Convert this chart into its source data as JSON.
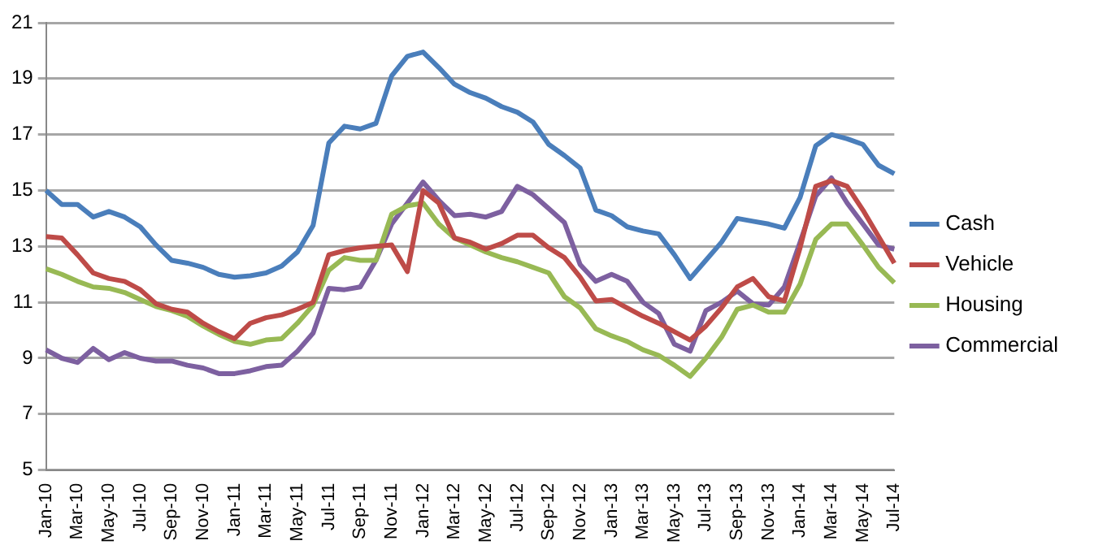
{
  "chart_data": {
    "type": "line",
    "categories": [
      "Jan-10",
      null,
      "Mar-10",
      null,
      "May-10",
      null,
      "Jul-10",
      null,
      "Sep-10",
      null,
      "Nov-10",
      null,
      "Jan-11",
      null,
      "Mar-11",
      null,
      "May-11",
      null,
      "Jul-11",
      null,
      "Sep-11",
      null,
      "Nov-11",
      null,
      "Jan-12",
      null,
      "Mar-12",
      null,
      "May-12",
      null,
      "Jul-12",
      null,
      "Sep-12",
      null,
      "Nov-12",
      null,
      "Jan-13",
      null,
      "Mar-13",
      null,
      "May-13",
      null,
      "Jul-13",
      null,
      "Sep-13",
      null,
      "Nov-13",
      null,
      "Jan-14",
      null,
      "Mar-14",
      null,
      "May-14",
      null,
      "Jul-14"
    ],
    "series": [
      {
        "name": "Cash",
        "color": "#4a7ebb",
        "values": [
          15.0,
          14.5,
          14.5,
          14.05,
          14.25,
          14.05,
          13.7,
          13.05,
          12.5,
          12.4,
          12.25,
          12.0,
          11.9,
          11.95,
          12.05,
          12.3,
          12.8,
          13.75,
          16.7,
          17.3,
          17.2,
          17.4,
          19.1,
          19.8,
          19.95,
          19.4,
          18.8,
          18.5,
          18.3,
          18.0,
          17.8,
          17.45,
          16.65,
          16.25,
          15.8,
          14.3,
          14.1,
          13.7,
          13.55,
          13.45,
          12.7,
          11.85,
          12.5,
          13.15,
          14.0,
          13.9,
          13.8,
          13.65,
          14.75,
          16.6,
          17.0,
          16.85,
          16.65,
          15.9,
          15.6
        ]
      },
      {
        "name": "Vehicle",
        "color": "#be4b48",
        "values": [
          13.35,
          13.3,
          12.7,
          12.05,
          11.85,
          11.75,
          11.45,
          10.95,
          10.75,
          10.65,
          10.25,
          9.95,
          9.7,
          10.25,
          10.45,
          10.55,
          10.75,
          11.0,
          12.7,
          12.85,
          12.95,
          13.0,
          13.05,
          12.1,
          15.0,
          14.55,
          13.3,
          13.15,
          12.9,
          13.1,
          13.4,
          13.4,
          12.95,
          12.6,
          11.9,
          11.05,
          11.1,
          10.8,
          10.5,
          10.25,
          9.95,
          9.65,
          10.15,
          10.8,
          11.55,
          11.85,
          11.2,
          11.05,
          12.95,
          15.15,
          15.35,
          15.15,
          14.3,
          13.35,
          12.4
        ]
      },
      {
        "name": "Housing",
        "color": "#98b954",
        "values": [
          12.2,
          12.0,
          11.75,
          11.55,
          11.5,
          11.35,
          11.1,
          10.85,
          10.7,
          10.5,
          10.15,
          9.85,
          9.6,
          9.5,
          9.65,
          9.7,
          10.25,
          10.9,
          12.15,
          12.6,
          12.5,
          12.5,
          14.15,
          14.45,
          14.55,
          13.8,
          13.3,
          13.05,
          12.8,
          12.6,
          12.45,
          12.25,
          12.05,
          11.2,
          10.8,
          10.05,
          9.8,
          9.6,
          9.3,
          9.1,
          8.75,
          8.35,
          9.0,
          9.75,
          10.75,
          10.9,
          10.65,
          10.65,
          11.65,
          13.25,
          13.8,
          13.8,
          13.05,
          12.25,
          11.7
        ]
      },
      {
        "name": "Commercial",
        "color": "#7d60a0",
        "values": [
          9.3,
          9.0,
          8.85,
          9.35,
          8.95,
          9.2,
          9.0,
          8.9,
          8.9,
          8.75,
          8.65,
          8.45,
          8.45,
          8.55,
          8.7,
          8.75,
          9.25,
          9.9,
          11.5,
          11.45,
          11.55,
          12.5,
          13.8,
          14.55,
          15.3,
          14.65,
          14.1,
          14.15,
          14.05,
          14.25,
          15.15,
          14.85,
          14.35,
          13.85,
          12.35,
          11.75,
          12.0,
          11.75,
          11.0,
          10.6,
          9.5,
          9.25,
          10.7,
          11.0,
          11.4,
          10.95,
          10.9,
          11.55,
          13.15,
          14.8,
          15.45,
          14.55,
          13.8,
          13.05,
          12.9
        ]
      }
    ],
    "ylim": [
      5,
      21
    ],
    "yticks": [
      5,
      7,
      9,
      11,
      13,
      15,
      17,
      19,
      21
    ],
    "grid": "y",
    "legend": "right"
  }
}
